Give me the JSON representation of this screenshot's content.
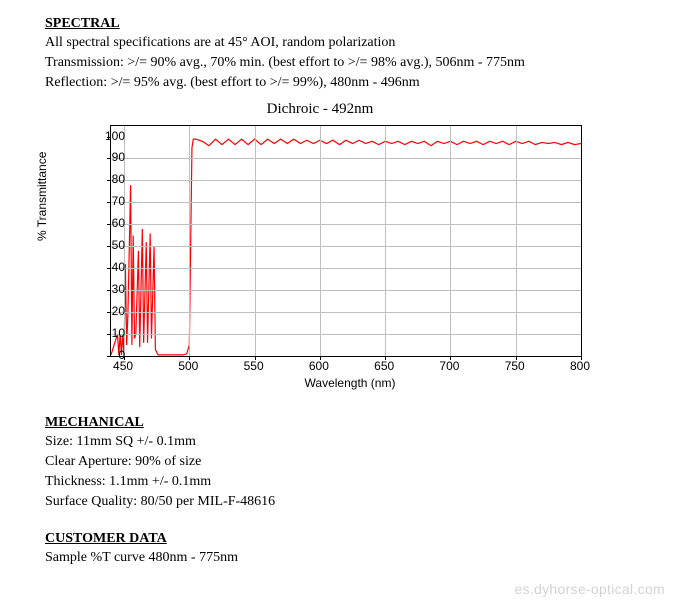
{
  "spectral": {
    "heading": "SPECTRAL",
    "line1": "All spectral specifications are at 45° AOI, random polarization",
    "line2": "Transmission:  >/= 90% avg., 70% min. (best effort to >/= 98% avg.), 506nm - 775nm",
    "line3": "Reflection:  >/= 95% avg. (best effort to >/= 99%), 480nm - 496nm"
  },
  "chart": {
    "title": "Dichroic - 492nm",
    "xlabel": "Wavelength (nm)",
    "ylabel": "% Transmittance",
    "xlim": [
      440,
      800
    ],
    "ylim": [
      0,
      105
    ],
    "xticks": [
      450,
      500,
      550,
      600,
      650,
      700,
      750,
      800
    ],
    "yticks": [
      0,
      10,
      20,
      30,
      40,
      50,
      60,
      70,
      80,
      90,
      100
    ],
    "line_color": "#ff0000",
    "line_width": 1.2,
    "grid_color": "#bfbfbf",
    "data": [
      [
        440,
        0.5
      ],
      [
        445,
        10
      ],
      [
        446,
        0.5
      ],
      [
        447,
        10
      ],
      [
        448,
        0.5
      ],
      [
        449,
        10
      ],
      [
        450,
        0.5
      ],
      [
        451,
        42
      ],
      [
        452,
        5
      ],
      [
        453,
        20
      ],
      [
        455,
        78
      ],
      [
        456,
        5
      ],
      [
        457,
        55
      ],
      [
        458,
        8
      ],
      [
        459,
        10
      ],
      [
        461,
        48
      ],
      [
        462,
        4
      ],
      [
        464,
        58
      ],
      [
        465,
        6
      ],
      [
        467,
        52
      ],
      [
        468,
        6
      ],
      [
        470,
        56
      ],
      [
        471,
        8
      ],
      [
        473,
        50
      ],
      [
        474,
        3
      ],
      [
        476,
        0.5
      ],
      [
        478,
        0.5
      ],
      [
        480,
        0.5
      ],
      [
        485,
        0.5
      ],
      [
        490,
        0.5
      ],
      [
        495,
        0.5
      ],
      [
        498,
        1
      ],
      [
        500,
        5
      ],
      [
        501,
        50
      ],
      [
        502,
        95
      ],
      [
        503,
        99
      ],
      [
        505,
        99
      ],
      [
        510,
        98
      ],
      [
        515,
        96
      ],
      [
        520,
        99
      ],
      [
        525,
        96.5
      ],
      [
        530,
        99
      ],
      [
        535,
        96.5
      ],
      [
        540,
        99
      ],
      [
        545,
        96.5
      ],
      [
        550,
        99
      ],
      [
        555,
        96.5
      ],
      [
        560,
        99
      ],
      [
        565,
        97
      ],
      [
        570,
        99
      ],
      [
        575,
        97
      ],
      [
        580,
        99
      ],
      [
        585,
        97
      ],
      [
        590,
        98.5
      ],
      [
        595,
        97
      ],
      [
        600,
        98.5
      ],
      [
        605,
        97
      ],
      [
        610,
        98.5
      ],
      [
        615,
        96.5
      ],
      [
        620,
        98.5
      ],
      [
        625,
        97
      ],
      [
        630,
        98.5
      ],
      [
        635,
        97
      ],
      [
        640,
        98
      ],
      [
        645,
        96.5
      ],
      [
        650,
        98
      ],
      [
        655,
        97
      ],
      [
        660,
        98
      ],
      [
        665,
        96.5
      ],
      [
        670,
        98
      ],
      [
        675,
        97
      ],
      [
        680,
        98
      ],
      [
        685,
        96
      ],
      [
        690,
        98
      ],
      [
        695,
        97
      ],
      [
        700,
        98
      ],
      [
        705,
        96.5
      ],
      [
        710,
        98
      ],
      [
        715,
        97
      ],
      [
        720,
        98
      ],
      [
        725,
        96.5
      ],
      [
        730,
        98
      ],
      [
        735,
        97
      ],
      [
        740,
        98
      ],
      [
        745,
        96.5
      ],
      [
        750,
        98
      ],
      [
        755,
        97
      ],
      [
        760,
        98
      ],
      [
        765,
        96.5
      ],
      [
        770,
        97.5
      ],
      [
        775,
        97
      ],
      [
        780,
        97.5
      ],
      [
        785,
        96.5
      ],
      [
        790,
        97.5
      ],
      [
        795,
        96.5
      ],
      [
        800,
        97
      ]
    ]
  },
  "mechanical": {
    "heading": "MECHANICAL",
    "line1": "Size: 11mm SQ +/- 0.1mm",
    "line2": "Clear Aperture:  90% of size",
    "line3": "Thickness: 1.1mm +/- 0.1mm",
    "line4": "Surface Quality: 80/50 per MIL-F-48616"
  },
  "customer": {
    "heading": "CUSTOMER DATA",
    "line1": "Sample %T curve 480nm - 775nm"
  },
  "watermark": "es.dyhorse-optical.com"
}
